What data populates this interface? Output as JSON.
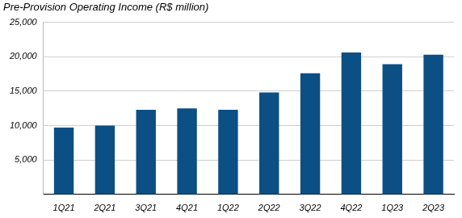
{
  "chart_data": {
    "type": "bar",
    "title": "Pre-Provision Operating Income (R$ million)",
    "categories": [
      "1Q21",
      "2Q21",
      "3Q21",
      "4Q21",
      "1Q22",
      "2Q22",
      "3Q22",
      "4Q22",
      "1Q23",
      "2Q23"
    ],
    "values": [
      9700,
      10000,
      12300,
      12500,
      12300,
      14800,
      17600,
      20600,
      18900,
      20300
    ],
    "color": "#0b4f84",
    "ylim": [
      0,
      25000
    ],
    "yticks": [
      {
        "value": 5000,
        "label": "5,000"
      },
      {
        "value": 10000,
        "label": "10,000"
      },
      {
        "value": 15000,
        "label": "15,000"
      },
      {
        "value": 20000,
        "label": "20,000"
      },
      {
        "value": 25000,
        "label": "25,000"
      }
    ],
    "grid": true
  }
}
